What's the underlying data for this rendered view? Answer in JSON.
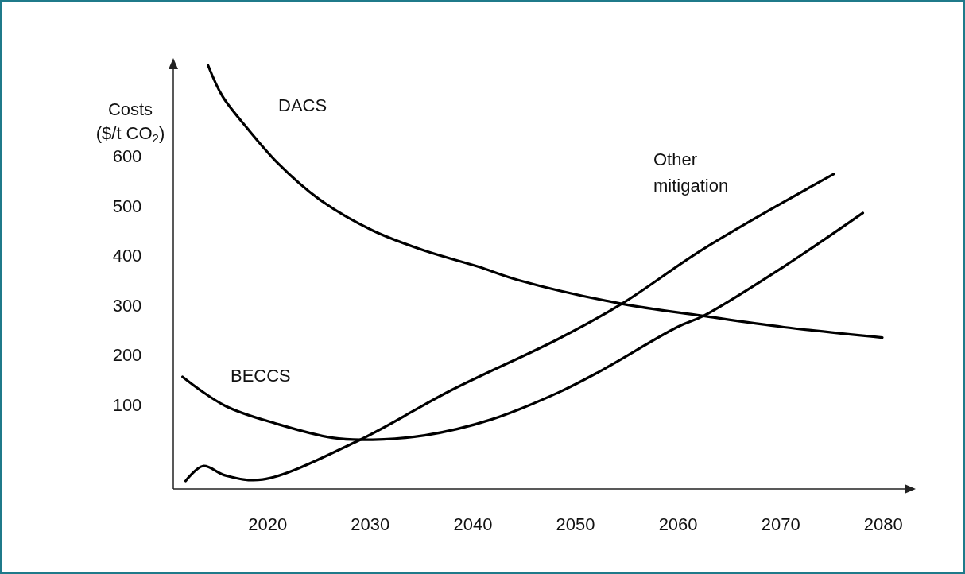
{
  "chart_data": {
    "type": "line",
    "ylabel": "Costs ($/t CO$_{2}$)",
    "xlim": [
      2010.8,
      2083
    ],
    "ylim": [
      -70,
      795
    ],
    "xticks": [
      2020,
      2030,
      2040,
      2050,
      2060,
      2070,
      2080
    ],
    "yticks": [
      100,
      200,
      300,
      400,
      500,
      600
    ],
    "grid": false,
    "legend": false,
    "marker": "none",
    "line_style": "solid",
    "series": [
      {
        "name": "DACS",
        "color": "#000000",
        "x": [
          2014.2,
          2015.6,
          2018.0,
          2021.1,
          2025.0,
          2030.2,
          2035.3,
          2040.5,
          2044.4,
          2054.5,
          2062.3,
          2070.3,
          2079.9
        ],
        "values": [
          783,
          721,
          657,
          584,
          514,
          451,
          410,
          378,
          351,
          303,
          279,
          256,
          235
        ]
      },
      {
        "name": "BECCS",
        "color": "#000000",
        "x": [
          2011.7,
          2015.9,
          2021.1,
          2026.3,
          2029.1,
          2035.3,
          2041.8,
          2048.3,
          2052.2,
          2059.9,
          2062.5,
          2070.3,
          2078.0
        ],
        "values": [
          156,
          97,
          60,
          33,
          29,
          38,
          70,
          124,
          165,
          256,
          279,
          378,
          486
        ]
      },
      {
        "name": "Other mitigation",
        "color": "#000000",
        "x": [
          2012.0,
          2013.7,
          2015.9,
          2019.5,
          2028.6,
          2037.9,
          2048.3,
          2054.5,
          2062.5,
          2075.2
        ],
        "values": [
          -54,
          -24,
          -43,
          -51,
          25,
          129,
          232,
          303,
          414,
          565
        ]
      }
    ]
  }
}
